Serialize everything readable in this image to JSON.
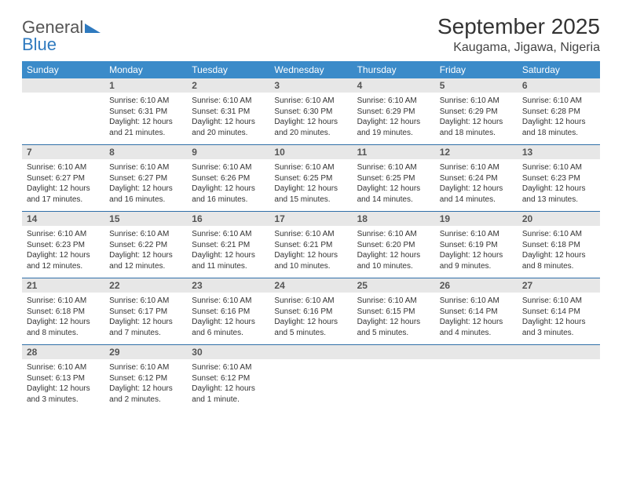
{
  "brand": {
    "name1": "General",
    "name2": "Blue"
  },
  "title": "September 2025",
  "location": "Kaugama, Jigawa, Nigeria",
  "colors": {
    "header_bg": "#3b8bc9",
    "header_text": "#ffffff",
    "daynum_bg": "#e7e7e7",
    "daynum_text": "#555555",
    "row_border": "#2f6fa8",
    "logo_gray": "#555555",
    "logo_blue": "#2f7abf",
    "body_text": "#333333"
  },
  "weekdays": [
    "Sunday",
    "Monday",
    "Tuesday",
    "Wednesday",
    "Thursday",
    "Friday",
    "Saturday"
  ],
  "weeks": [
    [
      {
        "n": "",
        "sunrise": "",
        "sunset": "",
        "daylight": ""
      },
      {
        "n": "1",
        "sunrise": "Sunrise: 6:10 AM",
        "sunset": "Sunset: 6:31 PM",
        "daylight": "Daylight: 12 hours and 21 minutes."
      },
      {
        "n": "2",
        "sunrise": "Sunrise: 6:10 AM",
        "sunset": "Sunset: 6:31 PM",
        "daylight": "Daylight: 12 hours and 20 minutes."
      },
      {
        "n": "3",
        "sunrise": "Sunrise: 6:10 AM",
        "sunset": "Sunset: 6:30 PM",
        "daylight": "Daylight: 12 hours and 20 minutes."
      },
      {
        "n": "4",
        "sunrise": "Sunrise: 6:10 AM",
        "sunset": "Sunset: 6:29 PM",
        "daylight": "Daylight: 12 hours and 19 minutes."
      },
      {
        "n": "5",
        "sunrise": "Sunrise: 6:10 AM",
        "sunset": "Sunset: 6:29 PM",
        "daylight": "Daylight: 12 hours and 18 minutes."
      },
      {
        "n": "6",
        "sunrise": "Sunrise: 6:10 AM",
        "sunset": "Sunset: 6:28 PM",
        "daylight": "Daylight: 12 hours and 18 minutes."
      }
    ],
    [
      {
        "n": "7",
        "sunrise": "Sunrise: 6:10 AM",
        "sunset": "Sunset: 6:27 PM",
        "daylight": "Daylight: 12 hours and 17 minutes."
      },
      {
        "n": "8",
        "sunrise": "Sunrise: 6:10 AM",
        "sunset": "Sunset: 6:27 PM",
        "daylight": "Daylight: 12 hours and 16 minutes."
      },
      {
        "n": "9",
        "sunrise": "Sunrise: 6:10 AM",
        "sunset": "Sunset: 6:26 PM",
        "daylight": "Daylight: 12 hours and 16 minutes."
      },
      {
        "n": "10",
        "sunrise": "Sunrise: 6:10 AM",
        "sunset": "Sunset: 6:25 PM",
        "daylight": "Daylight: 12 hours and 15 minutes."
      },
      {
        "n": "11",
        "sunrise": "Sunrise: 6:10 AM",
        "sunset": "Sunset: 6:25 PM",
        "daylight": "Daylight: 12 hours and 14 minutes."
      },
      {
        "n": "12",
        "sunrise": "Sunrise: 6:10 AM",
        "sunset": "Sunset: 6:24 PM",
        "daylight": "Daylight: 12 hours and 14 minutes."
      },
      {
        "n": "13",
        "sunrise": "Sunrise: 6:10 AM",
        "sunset": "Sunset: 6:23 PM",
        "daylight": "Daylight: 12 hours and 13 minutes."
      }
    ],
    [
      {
        "n": "14",
        "sunrise": "Sunrise: 6:10 AM",
        "sunset": "Sunset: 6:23 PM",
        "daylight": "Daylight: 12 hours and 12 minutes."
      },
      {
        "n": "15",
        "sunrise": "Sunrise: 6:10 AM",
        "sunset": "Sunset: 6:22 PM",
        "daylight": "Daylight: 12 hours and 12 minutes."
      },
      {
        "n": "16",
        "sunrise": "Sunrise: 6:10 AM",
        "sunset": "Sunset: 6:21 PM",
        "daylight": "Daylight: 12 hours and 11 minutes."
      },
      {
        "n": "17",
        "sunrise": "Sunrise: 6:10 AM",
        "sunset": "Sunset: 6:21 PM",
        "daylight": "Daylight: 12 hours and 10 minutes."
      },
      {
        "n": "18",
        "sunrise": "Sunrise: 6:10 AM",
        "sunset": "Sunset: 6:20 PM",
        "daylight": "Daylight: 12 hours and 10 minutes."
      },
      {
        "n": "19",
        "sunrise": "Sunrise: 6:10 AM",
        "sunset": "Sunset: 6:19 PM",
        "daylight": "Daylight: 12 hours and 9 minutes."
      },
      {
        "n": "20",
        "sunrise": "Sunrise: 6:10 AM",
        "sunset": "Sunset: 6:18 PM",
        "daylight": "Daylight: 12 hours and 8 minutes."
      }
    ],
    [
      {
        "n": "21",
        "sunrise": "Sunrise: 6:10 AM",
        "sunset": "Sunset: 6:18 PM",
        "daylight": "Daylight: 12 hours and 8 minutes."
      },
      {
        "n": "22",
        "sunrise": "Sunrise: 6:10 AM",
        "sunset": "Sunset: 6:17 PM",
        "daylight": "Daylight: 12 hours and 7 minutes."
      },
      {
        "n": "23",
        "sunrise": "Sunrise: 6:10 AM",
        "sunset": "Sunset: 6:16 PM",
        "daylight": "Daylight: 12 hours and 6 minutes."
      },
      {
        "n": "24",
        "sunrise": "Sunrise: 6:10 AM",
        "sunset": "Sunset: 6:16 PM",
        "daylight": "Daylight: 12 hours and 5 minutes."
      },
      {
        "n": "25",
        "sunrise": "Sunrise: 6:10 AM",
        "sunset": "Sunset: 6:15 PM",
        "daylight": "Daylight: 12 hours and 5 minutes."
      },
      {
        "n": "26",
        "sunrise": "Sunrise: 6:10 AM",
        "sunset": "Sunset: 6:14 PM",
        "daylight": "Daylight: 12 hours and 4 minutes."
      },
      {
        "n": "27",
        "sunrise": "Sunrise: 6:10 AM",
        "sunset": "Sunset: 6:14 PM",
        "daylight": "Daylight: 12 hours and 3 minutes."
      }
    ],
    [
      {
        "n": "28",
        "sunrise": "Sunrise: 6:10 AM",
        "sunset": "Sunset: 6:13 PM",
        "daylight": "Daylight: 12 hours and 3 minutes."
      },
      {
        "n": "29",
        "sunrise": "Sunrise: 6:10 AM",
        "sunset": "Sunset: 6:12 PM",
        "daylight": "Daylight: 12 hours and 2 minutes."
      },
      {
        "n": "30",
        "sunrise": "Sunrise: 6:10 AM",
        "sunset": "Sunset: 6:12 PM",
        "daylight": "Daylight: 12 hours and 1 minute."
      },
      {
        "n": "",
        "sunrise": "",
        "sunset": "",
        "daylight": ""
      },
      {
        "n": "",
        "sunrise": "",
        "sunset": "",
        "daylight": ""
      },
      {
        "n": "",
        "sunrise": "",
        "sunset": "",
        "daylight": ""
      },
      {
        "n": "",
        "sunrise": "",
        "sunset": "",
        "daylight": ""
      }
    ]
  ]
}
